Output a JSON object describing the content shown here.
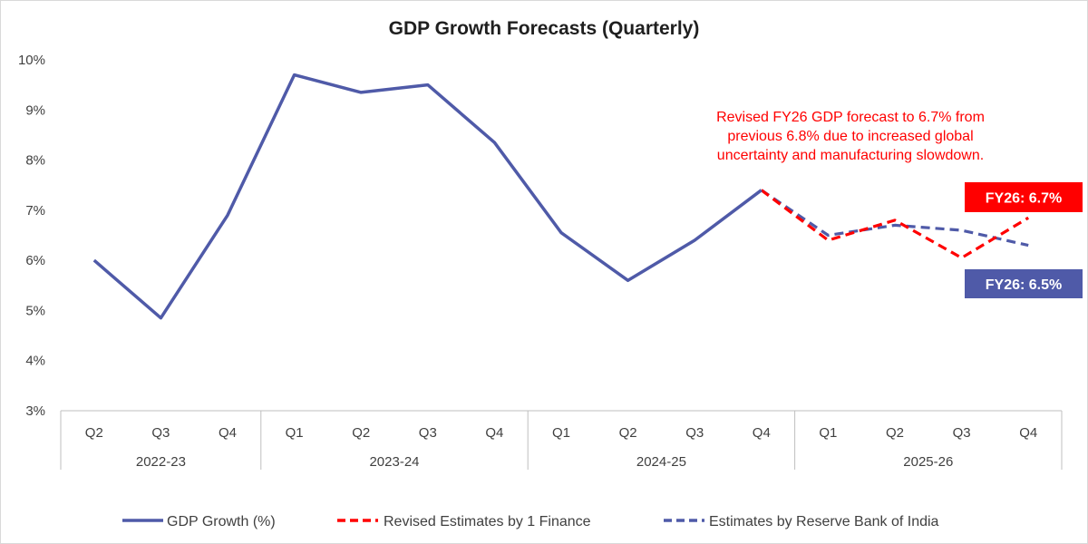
{
  "chart_data": {
    "type": "line",
    "title": "GDP Growth Forecasts (Quarterly)",
    "xlabel": "",
    "ylabel": "",
    "ylim": [
      3,
      10
    ],
    "y_ticks": [
      "3%",
      "4%",
      "5%",
      "6%",
      "7%",
      "8%",
      "9%",
      "10%"
    ],
    "quarters": [
      "Q2",
      "Q3",
      "Q4",
      "Q1",
      "Q2",
      "Q3",
      "Q4",
      "Q1",
      "Q2",
      "Q3",
      "Q4",
      "Q1",
      "Q2",
      "Q3",
      "Q4"
    ],
    "year_groups": [
      {
        "label": "2022-23",
        "start": 0,
        "end": 2
      },
      {
        "label": "2023-24",
        "start": 3,
        "end": 6
      },
      {
        "label": "2024-25",
        "start": 7,
        "end": 10
      },
      {
        "label": "2025-26",
        "start": 11,
        "end": 14
      }
    ],
    "series": [
      {
        "name": "GDP Growth (%)",
        "color": "#4f5aa8",
        "dash": "solid",
        "values": [
          6.0,
          4.85,
          6.9,
          9.7,
          9.35,
          9.5,
          8.35,
          6.55,
          5.6,
          6.4,
          7.4,
          null,
          null,
          null,
          null
        ]
      },
      {
        "name": "Revised Estimates by 1 Finance",
        "color": "#ff0000",
        "dash": "dashed",
        "values": [
          null,
          null,
          null,
          null,
          null,
          null,
          null,
          null,
          null,
          null,
          7.4,
          6.4,
          6.8,
          6.05,
          6.85
        ]
      },
      {
        "name": "Estimates by Reserve Bank of India",
        "color": "#4f5aa8",
        "dash": "dashed",
        "values": [
          null,
          null,
          null,
          null,
          null,
          null,
          null,
          null,
          null,
          null,
          7.4,
          6.5,
          6.7,
          6.6,
          6.3
        ]
      }
    ],
    "annotation": "Revised FY26 GDP forecast to 6.7% from previous 6.8% due to increased global uncertainty and manufacturing slowdown.",
    "annotation_color": "#ff0000",
    "callouts": [
      {
        "text": "FY26: 6.7%",
        "color": "#ff0000"
      },
      {
        "text": "FY26: 6.5%",
        "color": "#4f5aa8"
      }
    ],
    "grid": false,
    "legend_position": "bottom"
  }
}
